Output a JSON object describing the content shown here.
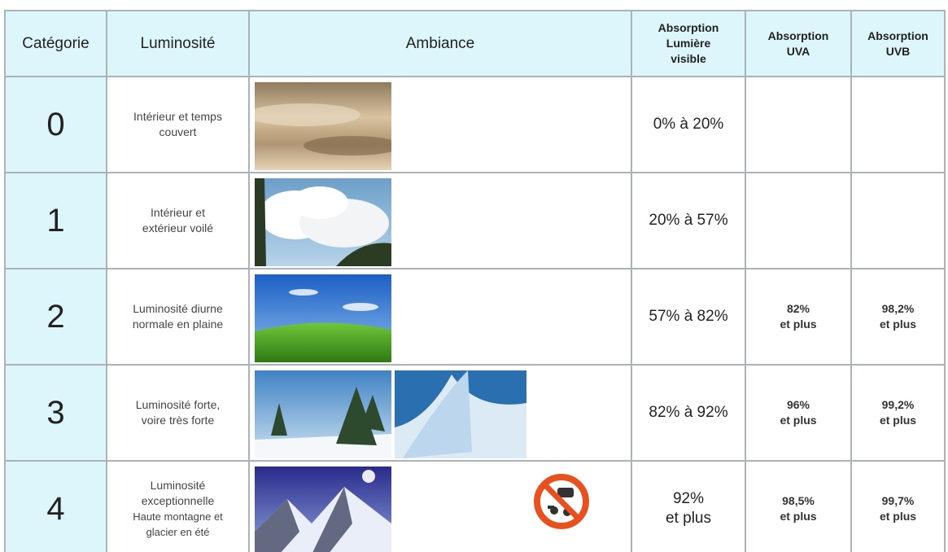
{
  "header": {
    "category": "Catégorie",
    "luminosity": "Luminosité",
    "ambiance": "Ambiance",
    "visible": [
      "Absorption",
      "Lumière",
      "visible"
    ],
    "uva": [
      "Absorption",
      "UVA"
    ],
    "uvb": [
      "Absorption",
      "UVB"
    ]
  },
  "rows": [
    {
      "category": "0",
      "luminosity": [
        "Intérieur et temps",
        "couvert"
      ],
      "visible": [
        "0% à 20%"
      ]
    },
    {
      "category": "1",
      "luminosity": [
        "Intérieur et",
        "extérieur voilé"
      ],
      "visible": [
        "20% à 57%"
      ]
    },
    {
      "category": "2",
      "luminosity": [
        "Luminosité diurne",
        "normale en plaine"
      ],
      "visible": [
        "57% à 82%"
      ],
      "uva": [
        "82%",
        "et plus"
      ],
      "uvb": [
        "98,2%",
        "et plus"
      ]
    },
    {
      "category": "3",
      "luminosity": [
        "Luminosité forte,",
        "voire très forte"
      ],
      "visible": [
        "82% à 92%"
      ],
      "uva": [
        "96%",
        "et plus"
      ],
      "uvb": [
        "99,2%",
        "et plus"
      ]
    },
    {
      "category": "4",
      "luminosity": [
        "Luminosité",
        "exceptionnelle",
        "Haute montagne et",
        "glacier en été"
      ],
      "visible": [
        "92%",
        "et plus"
      ],
      "uva": [
        "98,5%",
        "et plus"
      ],
      "uvb": [
        "99,7%",
        "et plus"
      ]
    }
  ]
}
